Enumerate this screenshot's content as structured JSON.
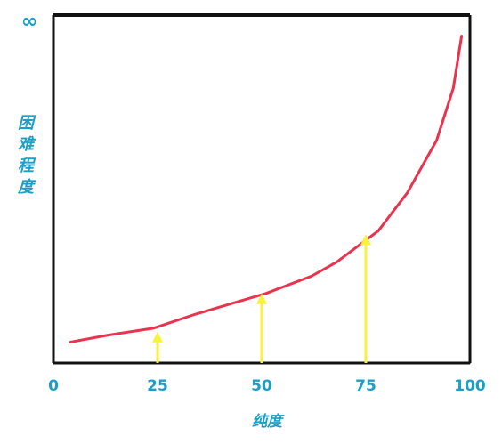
{
  "chart_data": {
    "type": "line",
    "xlabel": "纯度",
    "ylabel": "困难程度",
    "x": [
      4,
      13,
      24,
      34,
      51,
      62,
      68,
      78,
      85,
      92,
      96,
      98
    ],
    "series": [
      {
        "color": "#e8344e",
        "values": [
          6,
          8,
          10,
          14,
          20,
          25,
          29,
          38,
          49,
          64,
          79,
          94
        ]
      }
    ],
    "markers": {
      "color": "#f7f23a",
      "x": [
        25,
        50,
        75
      ],
      "values": [
        9,
        20,
        37
      ]
    },
    "xlim": [
      0,
      100
    ],
    "xticks": [
      0,
      25,
      50,
      75,
      100
    ],
    "ylim": [
      0,
      100
    ],
    "yticks": [
      {
        "value": 100,
        "label": "∞"
      }
    ],
    "text_color": "#1b9fc9"
  }
}
